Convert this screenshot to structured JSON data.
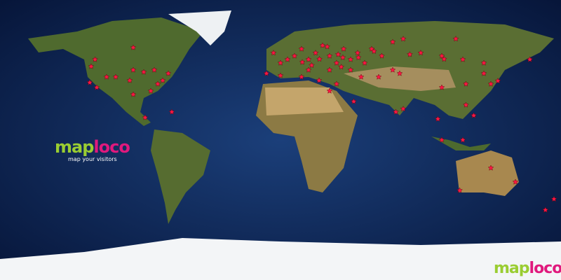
{
  "logo": {
    "part1": "map",
    "part2": "loco",
    "tagline": "map your visitors"
  },
  "colors": {
    "ocean": "#0d2a5c",
    "land": "#4d6b2c",
    "desert": "#b89a63",
    "ice": "#f2f4f6",
    "marker": "#ff1744"
  },
  "marker_icon": "star-icon",
  "markers": [
    [
      47.25,
      -121.5
    ],
    [
      36.9,
      -122.4
    ],
    [
      33.75,
      -117.9
    ],
    [
      40.5,
      -111.6
    ],
    [
      40.5,
      -105.75
    ],
    [
      38.25,
      -96.75
    ],
    [
      45,
      -94.5
    ],
    [
      43.65,
      -87.75
    ],
    [
      45,
      -81
    ],
    [
      42.75,
      -72
    ],
    [
      38.25,
      -75.6
    ],
    [
      36,
      -78.75
    ],
    [
      31.5,
      -83.25
    ],
    [
      29.25,
      -94.5
    ],
    [
      59.4,
      -94.5
    ],
    [
      14.4,
      -86.85
    ],
    [
      18,
      -69.75
    ],
    [
      51.75,
      -119
    ],
    [
      56,
      -4.5
    ],
    [
      49.5,
      0
    ],
    [
      51.75,
      4.5
    ],
    [
      54,
      9
    ],
    [
      58.5,
      13.5
    ],
    [
      51.75,
      18
    ],
    [
      56,
      22.5
    ],
    [
      60.75,
      27
    ],
    [
      54,
      31.5
    ],
    [
      49.5,
      36
    ],
    [
      58.5,
      40.5
    ],
    [
      51.75,
      45
    ],
    [
      56,
      49.5
    ],
    [
      49.5,
      54
    ],
    [
      58.5,
      58.5
    ],
    [
      54,
      65
    ],
    [
      63,
      72
    ],
    [
      65,
      78.75
    ],
    [
      56,
      90
    ],
    [
      54,
      103.5
    ],
    [
      65,
      112.5
    ],
    [
      51.75,
      117
    ],
    [
      42.75,
      -9
    ],
    [
      41.4,
      0
    ],
    [
      40.5,
      13.5
    ],
    [
      38.25,
      24.75
    ],
    [
      36,
      36
    ],
    [
      24.75,
      47
    ],
    [
      31.5,
      31.5
    ],
    [
      45,
      18
    ],
    [
      45,
      31.5
    ],
    [
      45,
      45
    ],
    [
      40.5,
      51.75
    ],
    [
      40.5,
      63
    ],
    [
      45,
      72
    ],
    [
      42.75,
      76.5
    ],
    [
      52,
      25
    ],
    [
      55,
      37
    ],
    [
      53,
      50
    ],
    [
      57,
      60
    ],
    [
      50,
      14
    ],
    [
      48,
      20
    ],
    [
      53,
      40
    ],
    [
      60,
      30
    ],
    [
      47,
      39
    ],
    [
      55,
      83
    ],
    [
      52,
      105
    ],
    [
      18,
      74
    ],
    [
      20,
      78.75
    ],
    [
      33.75,
      103.5
    ],
    [
      36,
      119
    ],
    [
      42.75,
      130.5
    ],
    [
      36,
      135
    ],
    [
      38,
      139.5
    ],
    [
      49.5,
      130.5
    ],
    [
      51.75,
      160
    ],
    [
      22.5,
      119
    ],
    [
      13.5,
      101
    ],
    [
      0,
      103.5
    ],
    [
      0,
      117
    ],
    [
      15.75,
      124
    ],
    [
      -32.4,
      115
    ],
    [
      -18,
      135
    ],
    [
      -27,
      150.75
    ],
    [
      -38,
      175.5
    ],
    [
      -45,
      170
    ]
  ]
}
